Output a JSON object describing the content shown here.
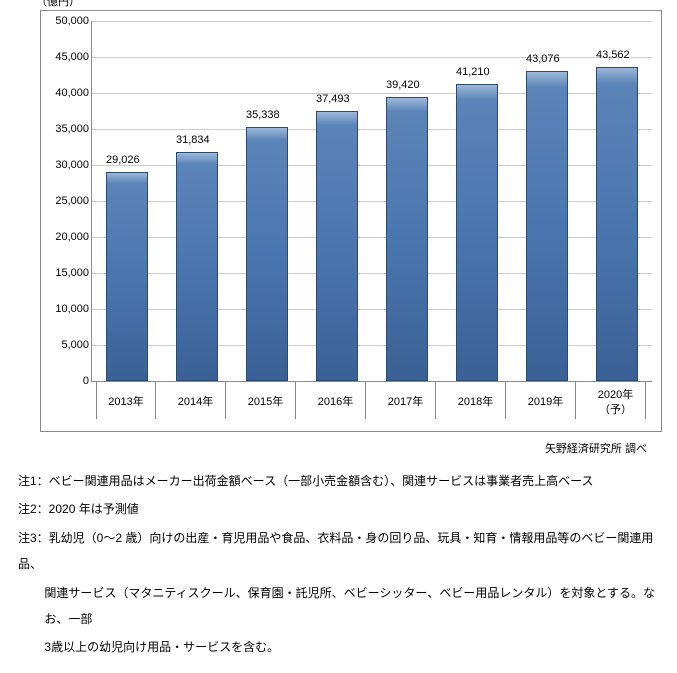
{
  "chart": {
    "type": "bar",
    "unit_label": "（億円）",
    "ylim_max": 50000,
    "ytick_step": 5000,
    "yticks": [
      "0",
      "5,000",
      "10,000",
      "15,000",
      "20,000",
      "25,000",
      "30,000",
      "35,000",
      "40,000",
      "45,000",
      "50,000"
    ],
    "categories": [
      "2013年",
      "2014年",
      "2015年",
      "2016年",
      "2017年",
      "2018年",
      "2019年",
      "2020年\n（予）"
    ],
    "values": [
      29026,
      31834,
      35338,
      37493,
      39420,
      41210,
      43076,
      43562
    ],
    "value_labels": [
      "29,026",
      "31,834",
      "35,338",
      "37,493",
      "39,420",
      "41,210",
      "43,076",
      "43,562"
    ],
    "bar_fill_top": "#9db8d9",
    "bar_fill_mid": "#4a76af",
    "bar_fill_bottom": "#3a6195",
    "bar_border": "#2a4a70",
    "grid_color": "#cccccc",
    "axis_color": "#888888",
    "background": "#ffffff",
    "font_size_tick": 11
  },
  "source": "矢野経済研究所 調べ",
  "notes": {
    "n1": "注1：ベビー関連用品はメーカー出荷金額ベース（一部小売金額含む）、関連サービスは事業者売上高ベース",
    "n2": "注2：2020 年は予測値",
    "n3a": "注3：乳幼児（0～2 歳）向けの出産・育児用品や食品、衣料品・身の回り品、玩具・知育・情報用品等のベビー関連用品、",
    "n3b": "関連サービス（マタニティスクール、保育園・託児所、ベビーシッター、ベビー用品レンタル）を対象とする。なお、一部",
    "n3c": "3歳以上の幼児向け用品・サービスを含む。"
  }
}
